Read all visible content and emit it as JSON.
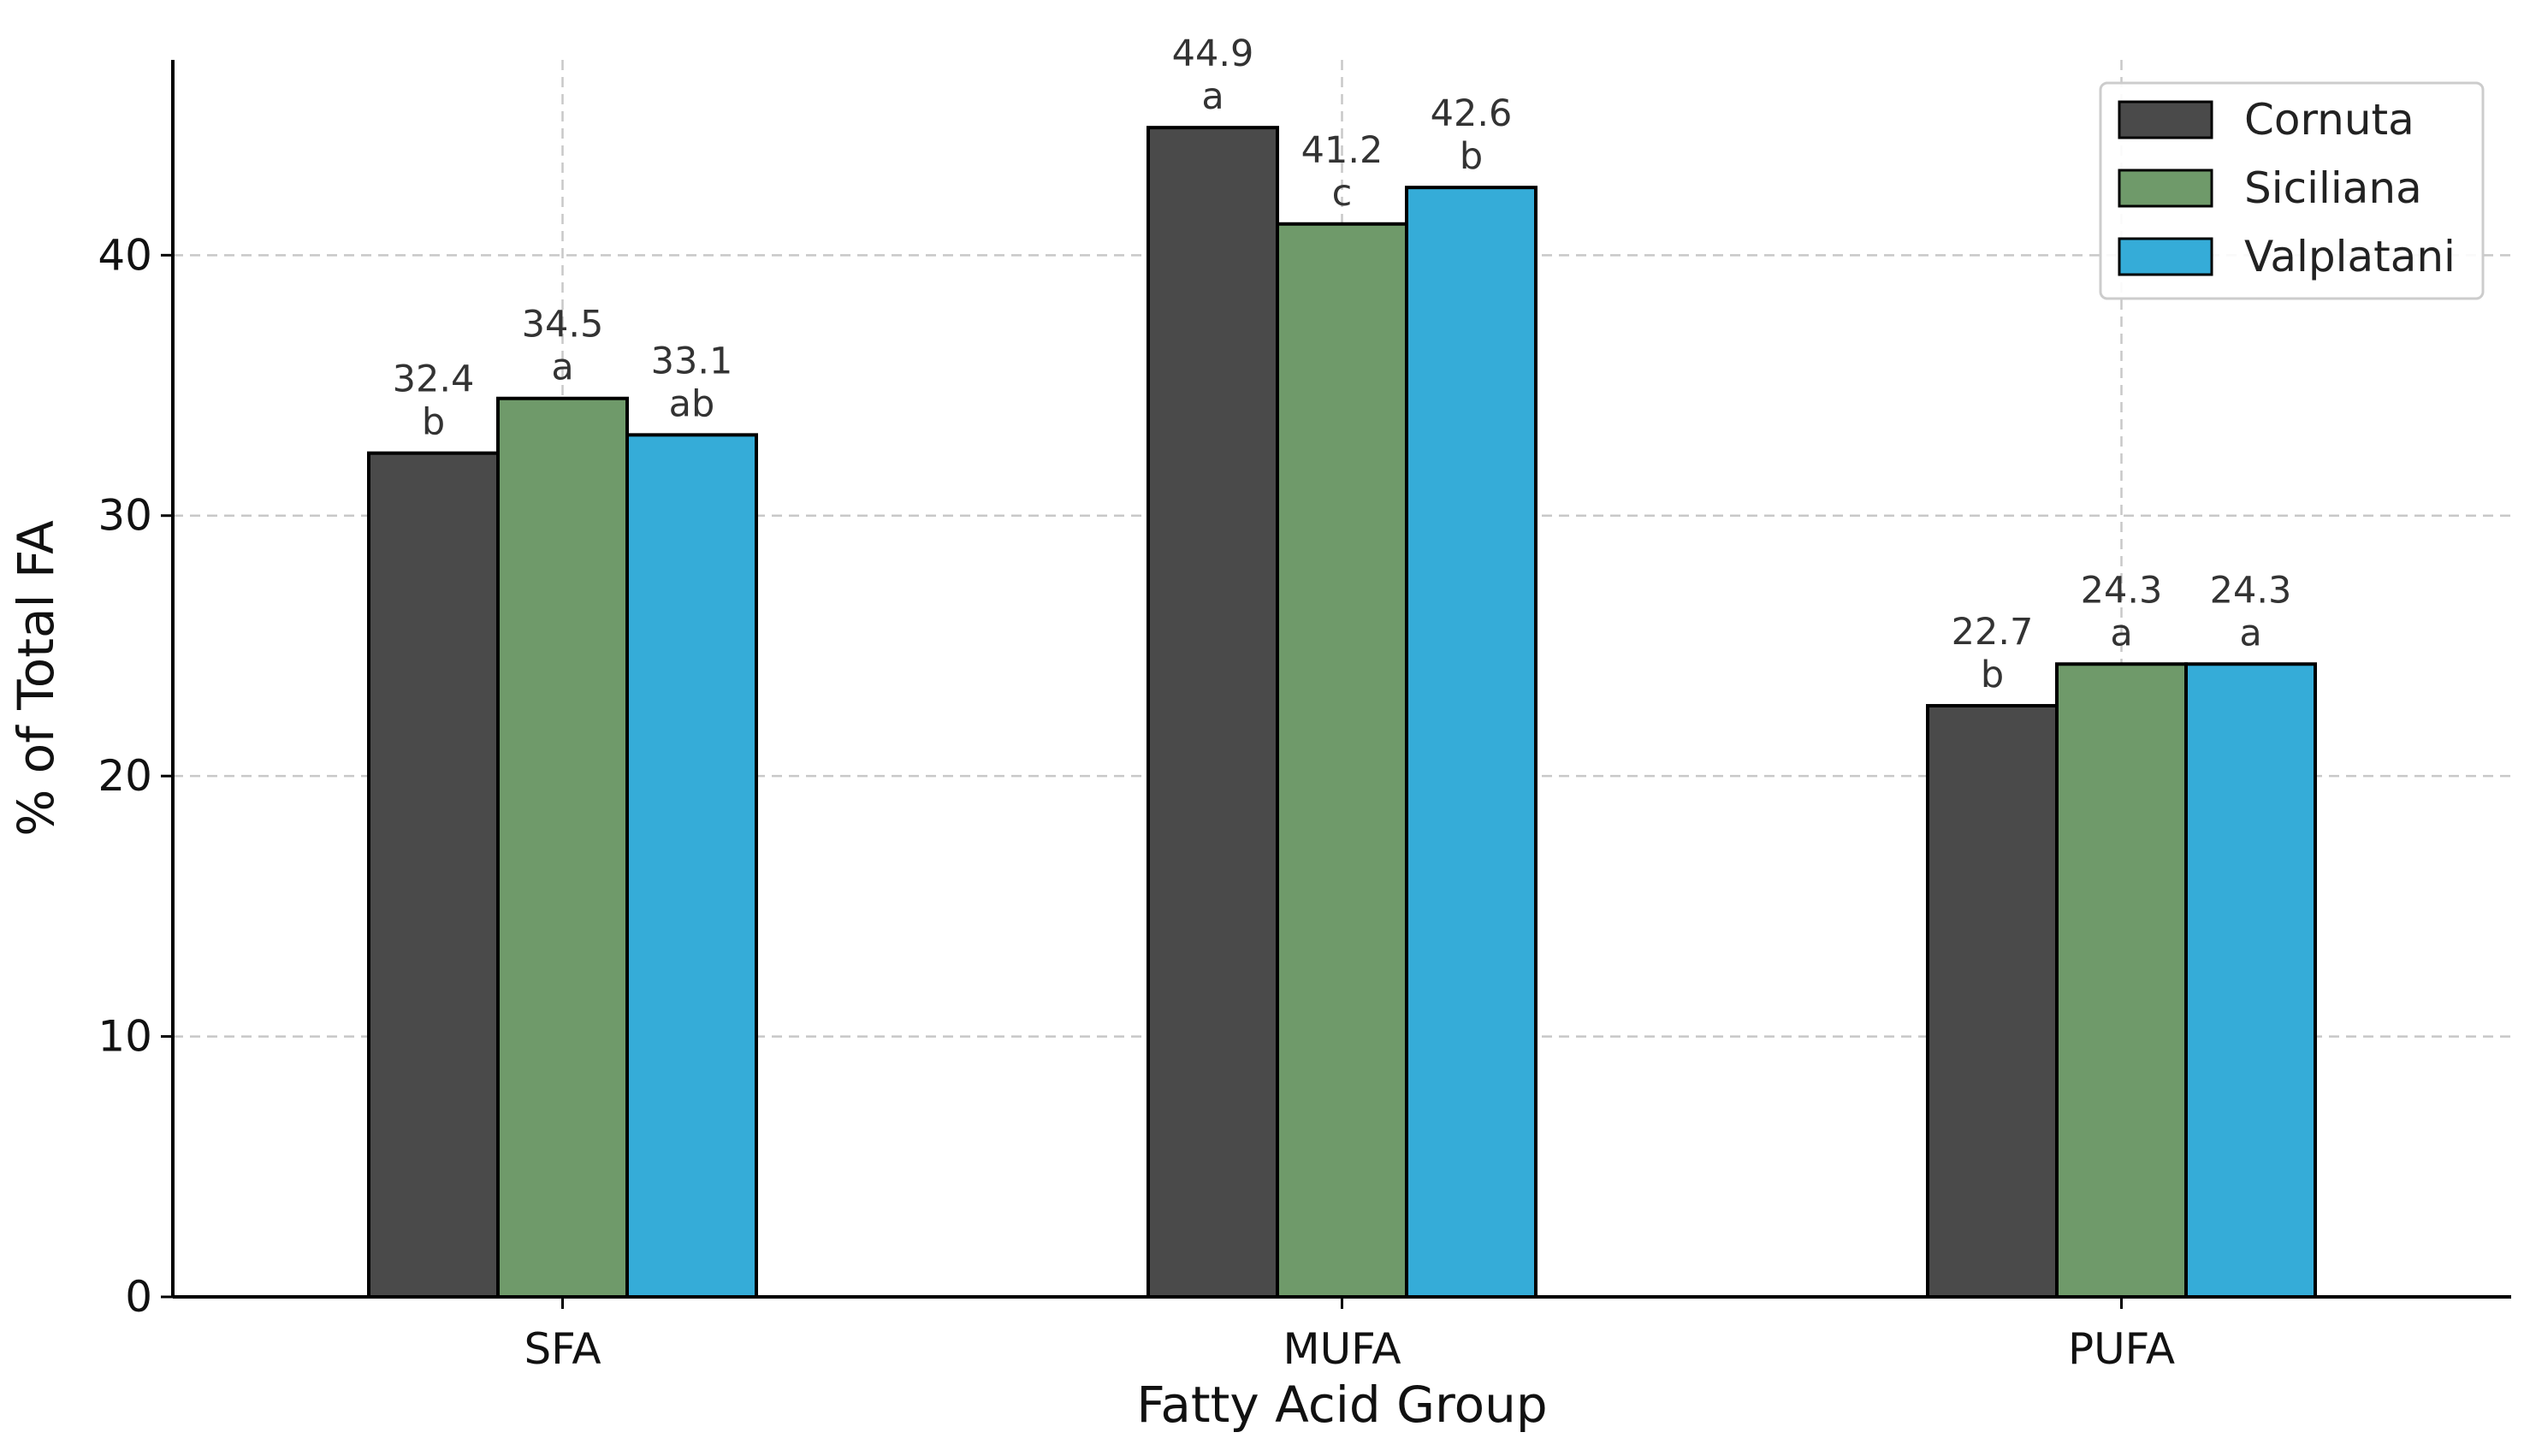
{
  "chart_data": {
    "type": "bar",
    "title": "",
    "xlabel": "Fatty Acid Group",
    "ylabel": "% of Total FA",
    "categories": [
      "SFA",
      "MUFA",
      "PUFA"
    ],
    "ylim": [
      0,
      47.5
    ],
    "yticks": [
      0,
      10,
      20,
      30,
      40
    ],
    "grid": true,
    "legend_position": "top-right",
    "series": [
      {
        "name": "Cornuta",
        "color": "#4a4a4a",
        "values": [
          32.4,
          44.9,
          22.7
        ],
        "letters": [
          "b",
          "a",
          "b"
        ]
      },
      {
        "name": "Siciliana",
        "color": "#6f9a6a",
        "values": [
          34.5,
          41.2,
          24.3
        ],
        "letters": [
          "a",
          "c",
          "a"
        ]
      },
      {
        "name": "Valplatani",
        "color": "#35acd8",
        "values": [
          33.1,
          42.6,
          24.3
        ],
        "letters": [
          "ab",
          "b",
          "a"
        ]
      }
    ]
  }
}
